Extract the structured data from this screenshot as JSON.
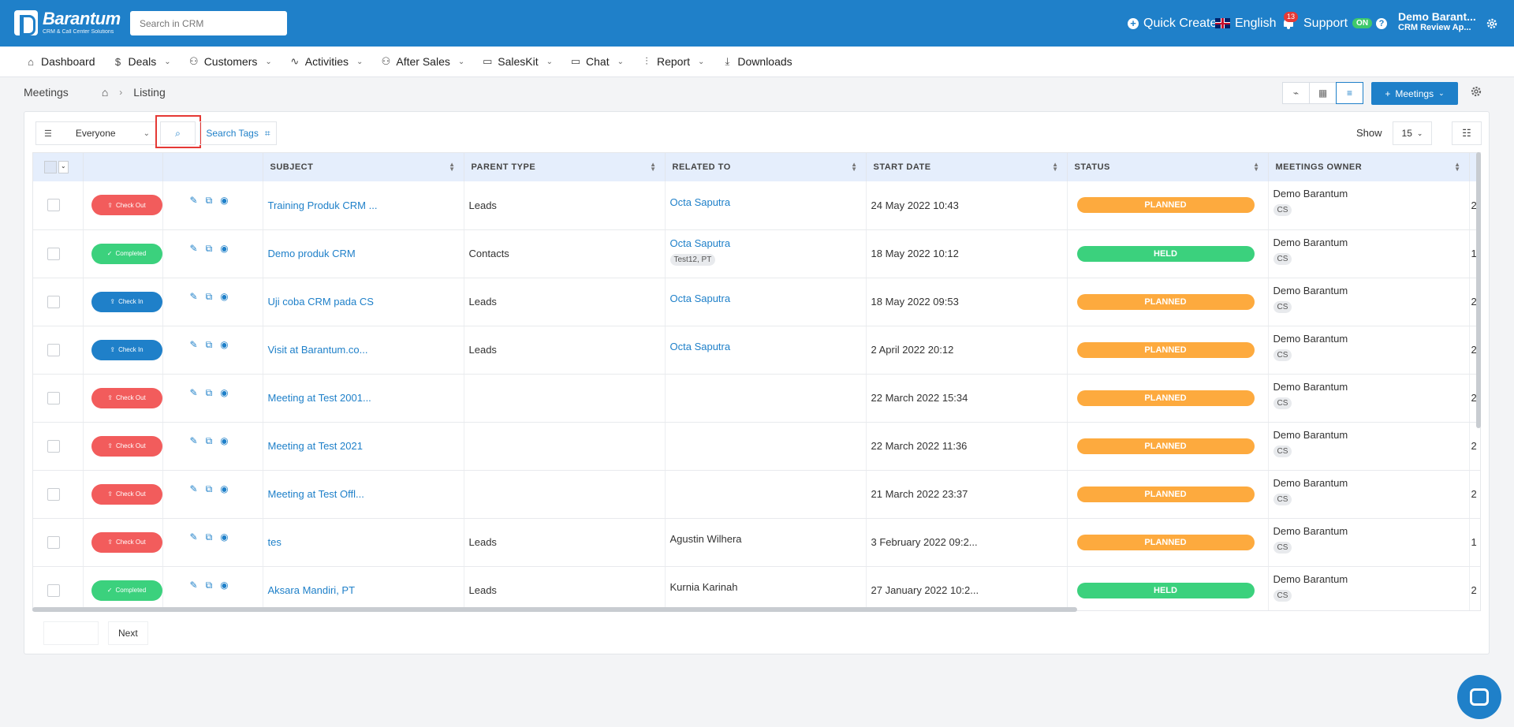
{
  "header": {
    "logo_name": "Barantum",
    "logo_tagline": "CRM & Call Center Solutions",
    "search_placeholder": "Search in CRM",
    "quick_create": "Quick Create",
    "language": "English",
    "notification_count": "13",
    "support_label": "Support",
    "support_status": "ON",
    "user_name": "Demo Barant...",
    "user_sub": "CRM Review Ap..."
  },
  "nav": {
    "items": [
      {
        "label": "Dashboard"
      },
      {
        "label": "Deals"
      },
      {
        "label": "Customers"
      },
      {
        "label": "Activities"
      },
      {
        "label": "After Sales"
      },
      {
        "label": "SalesKit"
      },
      {
        "label": "Chat"
      },
      {
        "label": "Report"
      },
      {
        "label": "Downloads"
      }
    ]
  },
  "breadcrumb": {
    "module": "Meetings",
    "page": "Listing"
  },
  "toolbar": {
    "meetings_button": "Meetings",
    "filter_value": "Everyone",
    "search_tags": "Search Tags",
    "show_label": "Show",
    "show_value": "15"
  },
  "table": {
    "columns": [
      "SUBJECT",
      "PARENT TYPE",
      "RELATED TO",
      "START DATE",
      "STATUS",
      "MEETINGS OWNER"
    ],
    "rows": [
      {
        "action": "Check Out",
        "subject": "Training Produk CRM ...",
        "parent_type": "Leads",
        "related_to": "Octa Saputra",
        "related_tag": "",
        "start_date": "24 May 2022 10:43",
        "status": "PLANNED",
        "owner": "Demo Barantum",
        "owner_tag": "CS",
        "next": "2"
      },
      {
        "action": "Completed",
        "subject": "Demo produk CRM",
        "parent_type": "Contacts",
        "related_to": "Octa Saputra",
        "related_tag": "Test12, PT",
        "start_date": "18 May 2022 10:12",
        "status": "HELD",
        "owner": "Demo Barantum",
        "owner_tag": "CS",
        "next": "1"
      },
      {
        "action": "Check In",
        "subject": "Uji coba CRM pada CS",
        "parent_type": "Leads",
        "related_to": "Octa Saputra",
        "related_tag": "",
        "start_date": "18 May 2022 09:53",
        "status": "PLANNED",
        "owner": "Demo Barantum",
        "owner_tag": "CS",
        "next": "2"
      },
      {
        "action": "Check In",
        "subject": "Visit at Barantum.co...",
        "parent_type": "Leads",
        "related_to": "Octa Saputra",
        "related_tag": "",
        "start_date": "2 April 2022 20:12",
        "status": "PLANNED",
        "owner": "Demo Barantum",
        "owner_tag": "CS",
        "next": "2"
      },
      {
        "action": "Check Out",
        "subject": "Meeting at Test 2001...",
        "parent_type": "",
        "related_to": "",
        "related_tag": "",
        "start_date": "22 March 2022 15:34",
        "status": "PLANNED",
        "owner": "Demo Barantum",
        "owner_tag": "CS",
        "next": "2"
      },
      {
        "action": "Check Out",
        "subject": "Meeting at Test 2021",
        "parent_type": "",
        "related_to": "",
        "related_tag": "",
        "start_date": "22 March 2022 11:36",
        "status": "PLANNED",
        "owner": "Demo Barantum",
        "owner_tag": "CS",
        "next": "2"
      },
      {
        "action": "Check Out",
        "subject": "Meeting at Test Offl...",
        "parent_type": "",
        "related_to": "",
        "related_tag": "",
        "start_date": "21 March 2022 23:37",
        "status": "PLANNED",
        "owner": "Demo Barantum",
        "owner_tag": "CS",
        "next": "2"
      },
      {
        "action": "Check Out",
        "subject": "tes",
        "parent_type": "Leads",
        "related_to": "Agustin Wilhera",
        "related_tag": "",
        "start_date": "3 February 2022 09:2...",
        "status": "PLANNED",
        "owner": "Demo Barantum",
        "owner_tag": "CS",
        "next": "1"
      },
      {
        "action": "Completed",
        "subject": "Aksara Mandiri, PT",
        "parent_type": "Leads",
        "related_to": "Kurnia Karinah",
        "related_tag": "",
        "start_date": "27 January 2022 10:2...",
        "status": "HELD",
        "owner": "Demo Barantum",
        "owner_tag": "CS",
        "next": "2"
      }
    ]
  },
  "pager": {
    "next": "Next"
  },
  "colors": {
    "brand": "#1f80c9",
    "planned": "#fdaa3e",
    "held": "#3bd17d",
    "check_out": "#f25c5c",
    "check_in": "#1f80c9"
  }
}
